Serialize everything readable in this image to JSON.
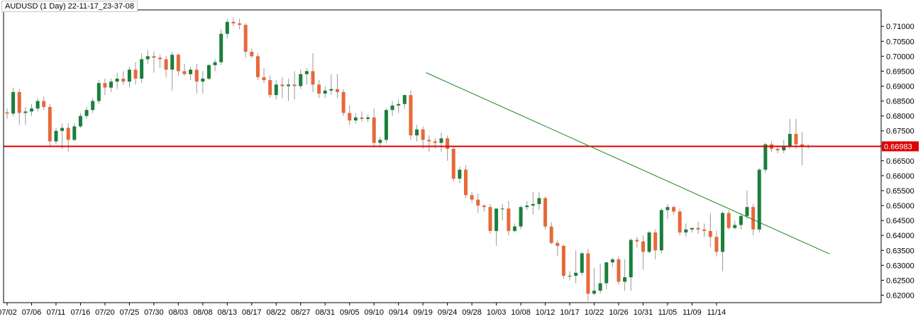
{
  "window": {
    "title": "AUDUSD (1 Day) 22-11-17_23-37-08"
  },
  "colors": {
    "bull": "#1a7f3c",
    "bear": "#e8683a",
    "wick": "#999999",
    "horizontal_line": "#dd0000",
    "trend_line": "#1a8a1a",
    "price_tag_bg": "#dd0000",
    "axis": "#000000",
    "background": "#ffffff"
  },
  "chart_data": {
    "type": "candlestick",
    "symbol": "AUDUSD",
    "timeframe": "1 Day",
    "ylim": [
      0.6175,
      0.7155
    ],
    "y_ticks": [
      0.71,
      0.705,
      0.7,
      0.695,
      0.69,
      0.685,
      0.68,
      0.675,
      0.67,
      0.665,
      0.66,
      0.655,
      0.65,
      0.645,
      0.64,
      0.635,
      0.63,
      0.625,
      0.62
    ],
    "y_tick_labels": [
      "0.71000",
      "0.70500",
      "0.70000",
      "0.69500",
      "0.69000",
      "0.68500",
      "0.68000",
      "0.67500",
      "0.67000",
      "0.66500",
      "0.66000",
      "0.65500",
      "0.65000",
      "0.64500",
      "0.64000",
      "0.63500",
      "0.63000",
      "0.62500",
      "0.62000"
    ],
    "x_tick_labels": [
      {
        "label": "07/02",
        "bar": 0
      },
      {
        "label": "07/06",
        "bar": 4
      },
      {
        "label": "07/11",
        "bar": 8
      },
      {
        "label": "07/16",
        "bar": 12
      },
      {
        "label": "07/20",
        "bar": 16
      },
      {
        "label": "07/25",
        "bar": 20
      },
      {
        "label": "07/30",
        "bar": 24
      },
      {
        "label": "08/03",
        "bar": 28
      },
      {
        "label": "08/08",
        "bar": 32
      },
      {
        "label": "08/13",
        "bar": 36
      },
      {
        "label": "08/17",
        "bar": 40
      },
      {
        "label": "08/22",
        "bar": 44
      },
      {
        "label": "08/27",
        "bar": 48
      },
      {
        "label": "08/31",
        "bar": 52
      },
      {
        "label": "09/05",
        "bar": 56
      },
      {
        "label": "09/10",
        "bar": 60
      },
      {
        "label": "09/14",
        "bar": 64
      },
      {
        "label": "09/19",
        "bar": 68
      },
      {
        "label": "09/24",
        "bar": 72
      },
      {
        "label": "09/28",
        "bar": 76
      },
      {
        "label": "10/03",
        "bar": 80
      },
      {
        "label": "10/08",
        "bar": 84
      },
      {
        "label": "10/12",
        "bar": 88
      },
      {
        "label": "10/17",
        "bar": 92
      },
      {
        "label": "10/22",
        "bar": 96
      },
      {
        "label": "10/26",
        "bar": 100
      },
      {
        "label": "10/31",
        "bar": 104
      },
      {
        "label": "11/05",
        "bar": 108
      },
      {
        "label": "11/09",
        "bar": 112
      },
      {
        "label": "11/14",
        "bar": 116
      }
    ],
    "candles": [
      {
        "o": 0.6812,
        "h": 0.6825,
        "l": 0.679,
        "c": 0.6808
      },
      {
        "o": 0.6808,
        "h": 0.6895,
        "l": 0.68,
        "c": 0.688
      },
      {
        "o": 0.688,
        "h": 0.689,
        "l": 0.677,
        "c": 0.681
      },
      {
        "o": 0.681,
        "h": 0.683,
        "l": 0.677,
        "c": 0.6815
      },
      {
        "o": 0.6815,
        "h": 0.684,
        "l": 0.68,
        "c": 0.6825
      },
      {
        "o": 0.6825,
        "h": 0.686,
        "l": 0.6815,
        "c": 0.685
      },
      {
        "o": 0.685,
        "h": 0.6865,
        "l": 0.682,
        "c": 0.683
      },
      {
        "o": 0.683,
        "h": 0.684,
        "l": 0.67,
        "c": 0.6715
      },
      {
        "o": 0.6715,
        "h": 0.676,
        "l": 0.6705,
        "c": 0.675
      },
      {
        "o": 0.675,
        "h": 0.6775,
        "l": 0.669,
        "c": 0.676
      },
      {
        "o": 0.676,
        "h": 0.6775,
        "l": 0.668,
        "c": 0.672
      },
      {
        "o": 0.672,
        "h": 0.6775,
        "l": 0.6715,
        "c": 0.6765
      },
      {
        "o": 0.6765,
        "h": 0.681,
        "l": 0.676,
        "c": 0.68
      },
      {
        "o": 0.68,
        "h": 0.683,
        "l": 0.679,
        "c": 0.682
      },
      {
        "o": 0.682,
        "h": 0.686,
        "l": 0.681,
        "c": 0.685
      },
      {
        "o": 0.685,
        "h": 0.692,
        "l": 0.684,
        "c": 0.691
      },
      {
        "o": 0.691,
        "h": 0.6925,
        "l": 0.687,
        "c": 0.6895
      },
      {
        "o": 0.6895,
        "h": 0.6925,
        "l": 0.688,
        "c": 0.6915
      },
      {
        "o": 0.6915,
        "h": 0.6945,
        "l": 0.689,
        "c": 0.6925
      },
      {
        "o": 0.6925,
        "h": 0.695,
        "l": 0.6905,
        "c": 0.6915
      },
      {
        "o": 0.6915,
        "h": 0.6965,
        "l": 0.6895,
        "c": 0.6955
      },
      {
        "o": 0.6955,
        "h": 0.698,
        "l": 0.6905,
        "c": 0.6925
      },
      {
        "o": 0.6925,
        "h": 0.701,
        "l": 0.691,
        "c": 0.699
      },
      {
        "o": 0.699,
        "h": 0.702,
        "l": 0.6975,
        "c": 0.7
      },
      {
        "o": 0.7,
        "h": 0.7015,
        "l": 0.6945,
        "c": 0.6995
      },
      {
        "o": 0.6995,
        "h": 0.7005,
        "l": 0.696,
        "c": 0.699
      },
      {
        "o": 0.699,
        "h": 0.7,
        "l": 0.693,
        "c": 0.6955
      },
      {
        "o": 0.6955,
        "h": 0.7015,
        "l": 0.6885,
        "c": 0.7005
      },
      {
        "o": 0.7005,
        "h": 0.701,
        "l": 0.6935,
        "c": 0.695
      },
      {
        "o": 0.695,
        "h": 0.6975,
        "l": 0.6935,
        "c": 0.694
      },
      {
        "o": 0.694,
        "h": 0.6965,
        "l": 0.692,
        "c": 0.6955
      },
      {
        "o": 0.6955,
        "h": 0.6975,
        "l": 0.6875,
        "c": 0.6915
      },
      {
        "o": 0.6915,
        "h": 0.695,
        "l": 0.6875,
        "c": 0.6925
      },
      {
        "o": 0.6925,
        "h": 0.6975,
        "l": 0.692,
        "c": 0.697
      },
      {
        "o": 0.697,
        "h": 0.699,
        "l": 0.695,
        "c": 0.698
      },
      {
        "o": 0.698,
        "h": 0.709,
        "l": 0.697,
        "c": 0.7075
      },
      {
        "o": 0.7075,
        "h": 0.7125,
        "l": 0.706,
        "c": 0.7115
      },
      {
        "o": 0.7115,
        "h": 0.713,
        "l": 0.71,
        "c": 0.711
      },
      {
        "o": 0.711,
        "h": 0.7125,
        "l": 0.709,
        "c": 0.7105
      },
      {
        "o": 0.7105,
        "h": 0.711,
        "l": 0.6995,
        "c": 0.7015
      },
      {
        "o": 0.7015,
        "h": 0.7025,
        "l": 0.6995,
        "c": 0.7
      },
      {
        "o": 0.7,
        "h": 0.701,
        "l": 0.692,
        "c": 0.693
      },
      {
        "o": 0.693,
        "h": 0.696,
        "l": 0.691,
        "c": 0.692
      },
      {
        "o": 0.692,
        "h": 0.6935,
        "l": 0.686,
        "c": 0.687
      },
      {
        "o": 0.687,
        "h": 0.692,
        "l": 0.6855,
        "c": 0.6905
      },
      {
        "o": 0.6905,
        "h": 0.693,
        "l": 0.686,
        "c": 0.69
      },
      {
        "o": 0.69,
        "h": 0.6925,
        "l": 0.685,
        "c": 0.6905
      },
      {
        "o": 0.6905,
        "h": 0.695,
        "l": 0.6855,
        "c": 0.69
      },
      {
        "o": 0.69,
        "h": 0.6955,
        "l": 0.689,
        "c": 0.694
      },
      {
        "o": 0.694,
        "h": 0.696,
        "l": 0.6905,
        "c": 0.695
      },
      {
        "o": 0.695,
        "h": 0.701,
        "l": 0.688,
        "c": 0.6905
      },
      {
        "o": 0.6905,
        "h": 0.692,
        "l": 0.686,
        "c": 0.6875
      },
      {
        "o": 0.6875,
        "h": 0.69,
        "l": 0.686,
        "c": 0.6885
      },
      {
        "o": 0.6885,
        "h": 0.694,
        "l": 0.687,
        "c": 0.689
      },
      {
        "o": 0.689,
        "h": 0.694,
        "l": 0.686,
        "c": 0.688
      },
      {
        "o": 0.688,
        "h": 0.689,
        "l": 0.68,
        "c": 0.681
      },
      {
        "o": 0.681,
        "h": 0.6835,
        "l": 0.677,
        "c": 0.6785
      },
      {
        "o": 0.6785,
        "h": 0.681,
        "l": 0.6775,
        "c": 0.6795
      },
      {
        "o": 0.6795,
        "h": 0.6815,
        "l": 0.678,
        "c": 0.679
      },
      {
        "o": 0.679,
        "h": 0.6805,
        "l": 0.678,
        "c": 0.6795
      },
      {
        "o": 0.6795,
        "h": 0.6825,
        "l": 0.6695,
        "c": 0.671
      },
      {
        "o": 0.671,
        "h": 0.673,
        "l": 0.6695,
        "c": 0.672
      },
      {
        "o": 0.672,
        "h": 0.6825,
        "l": 0.671,
        "c": 0.682
      },
      {
        "o": 0.682,
        "h": 0.685,
        "l": 0.68,
        "c": 0.6835
      },
      {
        "o": 0.6835,
        "h": 0.6855,
        "l": 0.681,
        "c": 0.684
      },
      {
        "o": 0.684,
        "h": 0.687,
        "l": 0.6825,
        "c": 0.687
      },
      {
        "o": 0.687,
        "h": 0.6885,
        "l": 0.672,
        "c": 0.6735
      },
      {
        "o": 0.6735,
        "h": 0.677,
        "l": 0.6715,
        "c": 0.6755
      },
      {
        "o": 0.6755,
        "h": 0.6765,
        "l": 0.669,
        "c": 0.672
      },
      {
        "o": 0.672,
        "h": 0.6735,
        "l": 0.668,
        "c": 0.6715
      },
      {
        "o": 0.6715,
        "h": 0.6725,
        "l": 0.669,
        "c": 0.671
      },
      {
        "o": 0.671,
        "h": 0.6745,
        "l": 0.668,
        "c": 0.6725
      },
      {
        "o": 0.6725,
        "h": 0.6735,
        "l": 0.665,
        "c": 0.669
      },
      {
        "o": 0.669,
        "h": 0.67,
        "l": 0.658,
        "c": 0.659
      },
      {
        "o": 0.659,
        "h": 0.663,
        "l": 0.6575,
        "c": 0.662
      },
      {
        "o": 0.662,
        "h": 0.6635,
        "l": 0.6525,
        "c": 0.6535
      },
      {
        "o": 0.6535,
        "h": 0.6545,
        "l": 0.651,
        "c": 0.652
      },
      {
        "o": 0.652,
        "h": 0.654,
        "l": 0.6475,
        "c": 0.65
      },
      {
        "o": 0.65,
        "h": 0.6505,
        "l": 0.648,
        "c": 0.6495
      },
      {
        "o": 0.6495,
        "h": 0.6505,
        "l": 0.6405,
        "c": 0.6415
      },
      {
        "o": 0.6415,
        "h": 0.649,
        "l": 0.6365,
        "c": 0.649
      },
      {
        "o": 0.649,
        "h": 0.6505,
        "l": 0.645,
        "c": 0.649
      },
      {
        "o": 0.649,
        "h": 0.6515,
        "l": 0.64,
        "c": 0.6415
      },
      {
        "o": 0.6415,
        "h": 0.644,
        "l": 0.641,
        "c": 0.643
      },
      {
        "o": 0.643,
        "h": 0.65,
        "l": 0.642,
        "c": 0.6495
      },
      {
        "o": 0.6495,
        "h": 0.6515,
        "l": 0.6485,
        "c": 0.65
      },
      {
        "o": 0.65,
        "h": 0.6545,
        "l": 0.647,
        "c": 0.6505
      },
      {
        "o": 0.6505,
        "h": 0.6545,
        "l": 0.6485,
        "c": 0.6525
      },
      {
        "o": 0.6525,
        "h": 0.653,
        "l": 0.642,
        "c": 0.643
      },
      {
        "o": 0.643,
        "h": 0.6445,
        "l": 0.637,
        "c": 0.6375
      },
      {
        "o": 0.6375,
        "h": 0.6385,
        "l": 0.633,
        "c": 0.6365
      },
      {
        "o": 0.6365,
        "h": 0.637,
        "l": 0.6255,
        "c": 0.6265
      },
      {
        "o": 0.6265,
        "h": 0.628,
        "l": 0.625,
        "c": 0.6265
      },
      {
        "o": 0.6265,
        "h": 0.635,
        "l": 0.624,
        "c": 0.6275
      },
      {
        "o": 0.6275,
        "h": 0.6345,
        "l": 0.6265,
        "c": 0.634
      },
      {
        "o": 0.634,
        "h": 0.6355,
        "l": 0.618,
        "c": 0.6205
      },
      {
        "o": 0.6205,
        "h": 0.629,
        "l": 0.62,
        "c": 0.6215
      },
      {
        "o": 0.6215,
        "h": 0.6305,
        "l": 0.6205,
        "c": 0.624
      },
      {
        "o": 0.624,
        "h": 0.631,
        "l": 0.622,
        "c": 0.631
      },
      {
        "o": 0.631,
        "h": 0.6325,
        "l": 0.6295,
        "c": 0.632
      },
      {
        "o": 0.632,
        "h": 0.633,
        "l": 0.6235,
        "c": 0.6245
      },
      {
        "o": 0.6245,
        "h": 0.632,
        "l": 0.6215,
        "c": 0.626
      },
      {
        "o": 0.626,
        "h": 0.639,
        "l": 0.6215,
        "c": 0.6385
      },
      {
        "o": 0.6385,
        "h": 0.6395,
        "l": 0.636,
        "c": 0.638
      },
      {
        "o": 0.638,
        "h": 0.64,
        "l": 0.6285,
        "c": 0.6345
      },
      {
        "o": 0.6345,
        "h": 0.6415,
        "l": 0.634,
        "c": 0.641
      },
      {
        "o": 0.641,
        "h": 0.642,
        "l": 0.632,
        "c": 0.635
      },
      {
        "o": 0.635,
        "h": 0.649,
        "l": 0.634,
        "c": 0.6485
      },
      {
        "o": 0.6485,
        "h": 0.6505,
        "l": 0.6455,
        "c": 0.6495
      },
      {
        "o": 0.6495,
        "h": 0.65,
        "l": 0.647,
        "c": 0.648
      },
      {
        "o": 0.648,
        "h": 0.649,
        "l": 0.64,
        "c": 0.641
      },
      {
        "o": 0.641,
        "h": 0.644,
        "l": 0.6395,
        "c": 0.642
      },
      {
        "o": 0.642,
        "h": 0.6425,
        "l": 0.641,
        "c": 0.6425
      },
      {
        "o": 0.6425,
        "h": 0.6445,
        "l": 0.6405,
        "c": 0.642
      },
      {
        "o": 0.642,
        "h": 0.644,
        "l": 0.6395,
        "c": 0.6415
      },
      {
        "o": 0.6415,
        "h": 0.6475,
        "l": 0.636,
        "c": 0.6395
      },
      {
        "o": 0.6395,
        "h": 0.6415,
        "l": 0.633,
        "c": 0.6345
      },
      {
        "o": 0.6345,
        "h": 0.648,
        "l": 0.628,
        "c": 0.6475
      },
      {
        "o": 0.6475,
        "h": 0.6485,
        "l": 0.642,
        "c": 0.6425
      },
      {
        "o": 0.6425,
        "h": 0.645,
        "l": 0.642,
        "c": 0.6435
      },
      {
        "o": 0.6435,
        "h": 0.6475,
        "l": 0.642,
        "c": 0.6465
      },
      {
        "o": 0.6465,
        "h": 0.655,
        "l": 0.6455,
        "c": 0.6495
      },
      {
        "o": 0.6495,
        "h": 0.6505,
        "l": 0.64,
        "c": 0.642
      },
      {
        "o": 0.642,
        "h": 0.6625,
        "l": 0.641,
        "c": 0.662
      },
      {
        "o": 0.662,
        "h": 0.671,
        "l": 0.661,
        "c": 0.6705
      },
      {
        "o": 0.6705,
        "h": 0.6715,
        "l": 0.668,
        "c": 0.669
      },
      {
        "o": 0.669,
        "h": 0.67,
        "l": 0.6675,
        "c": 0.6685
      },
      {
        "o": 0.6685,
        "h": 0.672,
        "l": 0.6675,
        "c": 0.67
      },
      {
        "o": 0.67,
        "h": 0.679,
        "l": 0.669,
        "c": 0.674
      },
      {
        "o": 0.674,
        "h": 0.679,
        "l": 0.669,
        "c": 0.6705
      },
      {
        "o": 0.6705,
        "h": 0.6745,
        "l": 0.6635,
        "c": 0.67
      },
      {
        "o": 0.67,
        "h": 0.6705,
        "l": 0.669,
        "c": 0.6698
      }
    ],
    "horizontal_line": {
      "value": 0.66983,
      "label": "0.66983"
    },
    "trend_line": {
      "from": {
        "bar": 68.5,
        "value": 0.6945
      },
      "to": {
        "bar": 134.5,
        "value": 0.6338
      }
    },
    "grid": false,
    "legend": "none"
  }
}
